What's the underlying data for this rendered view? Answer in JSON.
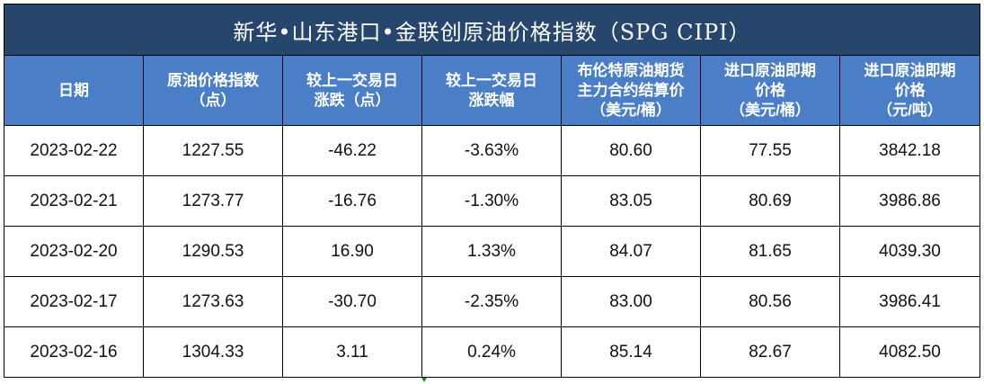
{
  "title": "新华•山东港口•金联创原油价格指数（SPG CIPI）",
  "headers": [
    [
      "日期"
    ],
    [
      "原油价格指数",
      "（点）"
    ],
    [
      "较上一交易日",
      "涨跌（点）"
    ],
    [
      "较上一交易日",
      "涨跌幅"
    ],
    [
      "布伦特原油期货",
      "主力合约结算价",
      "（美元/桶）"
    ],
    [
      "进口原油即期",
      "价格",
      "（美元/桶）"
    ],
    [
      "进口原油即期",
      "价格",
      "（元/吨）"
    ]
  ],
  "rows": [
    {
      "date": "2023-02-22",
      "index": "1227.55",
      "change": "-46.22",
      "change_pct": "-3.63%",
      "brent": "80.60",
      "spot_usd": "77.55",
      "spot_cny": "3842.18",
      "direction": "down"
    },
    {
      "date": "2023-02-21",
      "index": "1273.77",
      "change": "-16.76",
      "change_pct": "-1.30%",
      "brent": "83.05",
      "spot_usd": "80.69",
      "spot_cny": "3986.86",
      "direction": "down"
    },
    {
      "date": "2023-02-20",
      "index": "1290.53",
      "change": "16.90",
      "change_pct": "1.33%",
      "brent": "84.07",
      "spot_usd": "81.65",
      "spot_cny": "4039.30",
      "direction": "up"
    },
    {
      "date": "2023-02-17",
      "index": "1273.63",
      "change": "-30.70",
      "change_pct": "-2.35%",
      "brent": "83.00",
      "spot_usd": "80.56",
      "spot_cny": "3986.41",
      "direction": "down"
    },
    {
      "date": "2023-02-16",
      "index": "1304.33",
      "change": "3.11",
      "change_pct": "0.24%",
      "brent": "85.14",
      "spot_usd": "82.67",
      "spot_cny": "4082.50",
      "direction": "up"
    }
  ],
  "colors": {
    "title_bg": "#27466e",
    "header_bg": "#4a7ec7",
    "down": "#1e8a1e",
    "up": "#e01b1b"
  }
}
